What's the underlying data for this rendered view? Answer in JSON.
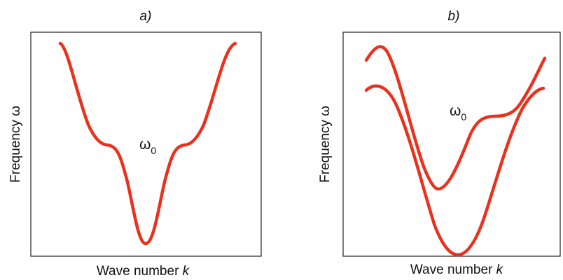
{
  "colors": {
    "curve": "#e8321e",
    "frame": "#222222"
  },
  "panels": [
    {
      "label": "a)",
      "xlabel_text": "Wave number ",
      "xlabel_var": "k",
      "ylabel": "Frequency ω",
      "annotation_main": "ω",
      "annotation_sub": "0",
      "curve_count": 1
    },
    {
      "label": "b)",
      "xlabel_text": "Wave number ",
      "xlabel_var": "k",
      "ylabel": "Frequency ω",
      "annotation_main": "ω",
      "annotation_sub": "0",
      "curve_count": 2
    }
  ]
}
